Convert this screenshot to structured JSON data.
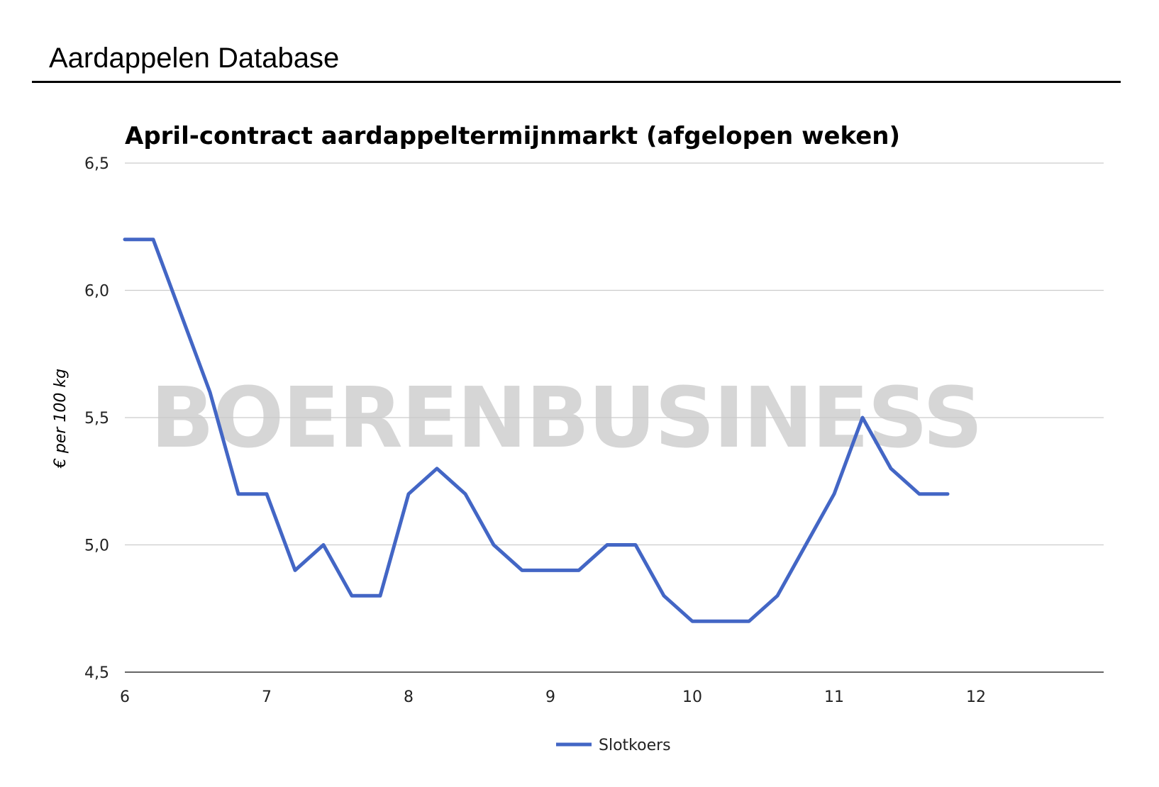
{
  "header": {
    "title": "Aardappelen Database"
  },
  "watermark": "BOERENBUSINESS",
  "colors": {
    "series": "#4366c5",
    "grid": "#cccccc",
    "axis": "#333333"
  },
  "chart_data": {
    "type": "line",
    "title": "April-contract aardappeltermijnmarkt (afgelopen weken)",
    "xlabel": "",
    "ylabel": "€ per 100 kg",
    "xlim": [
      6,
      12.9
    ],
    "ylim": [
      4.5,
      6.5
    ],
    "x_ticks": [
      6,
      7,
      8,
      9,
      10,
      11,
      12
    ],
    "x_tick_labels": [
      "6",
      "7",
      "8",
      "9",
      "10",
      "11",
      "12"
    ],
    "y_ticks": [
      4.5,
      5.0,
      5.5,
      6.0,
      6.5
    ],
    "y_tick_labels": [
      "4,5",
      "5,0",
      "5,5",
      "6,0",
      "6,5"
    ],
    "grid": true,
    "legend_position": "bottom",
    "series": [
      {
        "name": "Slotkoers",
        "color": "#4366c5",
        "x": [
          6.0,
          6.2,
          6.4,
          6.6,
          6.8,
          7.0,
          7.2,
          7.4,
          7.6,
          7.8,
          8.0,
          8.2,
          8.4,
          8.6,
          8.8,
          9.0,
          9.2,
          9.4,
          9.6,
          9.8,
          10.0,
          10.2,
          10.4,
          10.6,
          10.8,
          11.0,
          11.2,
          11.4,
          11.6,
          11.8
        ],
        "y": [
          6.2,
          6.2,
          5.9,
          5.6,
          5.2,
          5.2,
          4.9,
          5.0,
          4.8,
          4.8,
          5.2,
          5.3,
          5.2,
          5.0,
          4.9,
          4.9,
          4.9,
          5.0,
          5.0,
          4.8,
          4.7,
          4.7,
          4.7,
          4.8,
          5.0,
          5.2,
          5.5,
          5.3,
          5.2,
          5.2
        ]
      }
    ]
  }
}
